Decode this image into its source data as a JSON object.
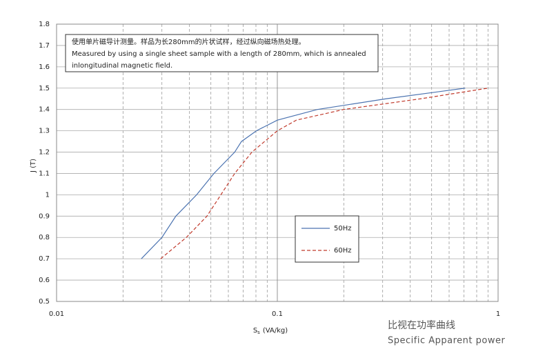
{
  "chart_data": {
    "type": "line",
    "annotation": [
      "使用单片磁导计测量。样品为长280mm的片状试样，经过纵向磁场热处理。",
      "Measured by using a single sheet sample with a length of 280mm, which is annealed",
      "inlongitudinal  magnetic field."
    ],
    "ylabel": "J (T)",
    "xlabel": {
      "main": "S",
      "sub": "s",
      "unit": "(VA/kg)"
    },
    "caption": [
      "比视在功率曲线",
      "Specific Apparent power"
    ],
    "xscale": "log",
    "grid": true,
    "xlim": [
      0.01,
      1
    ],
    "xticks": [
      0.01,
      0.1,
      1
    ],
    "ylim": [
      0.5,
      1.8
    ],
    "yticks": [
      0.5,
      0.6,
      0.7,
      0.8,
      0.9,
      1,
      1.1,
      1.2,
      1.3,
      1.4,
      1.5,
      1.6,
      1.7,
      1.8
    ],
    "series": [
      {
        "name": "50Hz",
        "color": "#4a72b0",
        "dashed": false,
        "x": [
          0.0242,
          0.03,
          0.0347,
          0.0431,
          0.0516,
          0.0641,
          0.0688,
          0.0804,
          0.1,
          0.152,
          0.31,
          0.71
        ],
        "values": [
          0.7,
          0.8,
          0.9,
          1.0,
          1.1,
          1.2,
          1.25,
          1.3,
          1.35,
          1.4,
          1.45,
          1.5
        ]
      },
      {
        "name": "60Hz",
        "color": "#c0392b",
        "dashed": true,
        "x": [
          0.0296,
          0.0387,
          0.048,
          0.0555,
          0.0641,
          0.0767,
          0.1,
          0.122,
          0.2,
          0.445,
          0.9
        ],
        "values": [
          0.7,
          0.8,
          0.9,
          1.0,
          1.1,
          1.2,
          1.3,
          1.35,
          1.4,
          1.45,
          1.5
        ]
      }
    ]
  }
}
